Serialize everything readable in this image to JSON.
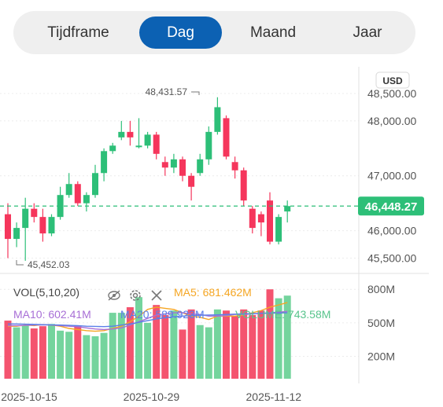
{
  "tabs": [
    {
      "label": "Tijdframe",
      "active": false
    },
    {
      "label": "Dag",
      "active": true
    },
    {
      "label": "Maand",
      "active": false
    },
    {
      "label": "Jaar",
      "active": false
    }
  ],
  "colors": {
    "up": "#2dbf78",
    "down": "#f5365c",
    "vol_up": "#74d49d",
    "vol_down": "#f4546f",
    "accent": "#0c61b3",
    "ma5": "#f5a623",
    "ma10": "#a86fd6",
    "ma20": "#5b7fe8",
    "vol_ma_label": "#58c48c"
  },
  "currency_badge": "USD",
  "current_price_label": "46,448.27",
  "high_label": "48,431.57",
  "low_label": "45,452.03",
  "volume_legend": {
    "title": "VOL(5,10,20)",
    "ma5": "MA5: 681.462M",
    "ma10": "MA10: 602.41M",
    "ma20": "MA20: 589.923M",
    "vol": "VOLUME: 743.58M"
  },
  "legend_icons": [
    "eye-off-icon",
    "gear-icon",
    "close-icon"
  ],
  "chart_data": {
    "type": "candlestick",
    "price_axis": {
      "range": [
        45350,
        48700
      ],
      "ticks": [
        48500,
        48000,
        47000,
        46000,
        45500
      ],
      "tick_labels": [
        "48,500.00",
        "48,000.00",
        "47,000.00",
        "46,000.00",
        "45,500.00"
      ]
    },
    "volume_axis": {
      "unit": "M",
      "range": [
        0,
        900
      ],
      "ticks": [
        800,
        500,
        200
      ],
      "tick_labels": [
        "800M",
        "500M",
        "200M"
      ]
    },
    "x_labels": [
      "2025-10-15",
      "2025-10-29",
      "2025-11-12"
    ],
    "x_label_candle_index": [
      0,
      14,
      28
    ],
    "current_price": 46448.27,
    "candles": [
      {
        "o": 46300,
        "h": 46500,
        "l": 45500,
        "c": 45850,
        "v": 520
      },
      {
        "o": 45850,
        "h": 46150,
        "l": 45700,
        "c": 46050,
        "v": 460
      },
      {
        "o": 46050,
        "h": 46600,
        "l": 45452.03,
        "c": 46400,
        "v": 480
      },
      {
        "o": 46400,
        "h": 46500,
        "l": 46150,
        "c": 46250,
        "v": 450
      },
      {
        "o": 46250,
        "h": 46400,
        "l": 45800,
        "c": 45950,
        "v": 470
      },
      {
        "o": 45950,
        "h": 46300,
        "l": 45900,
        "c": 46250,
        "v": 490
      },
      {
        "o": 46250,
        "h": 46800,
        "l": 46200,
        "c": 46650,
        "v": 430
      },
      {
        "o": 46650,
        "h": 47050,
        "l": 46600,
        "c": 46850,
        "v": 420
      },
      {
        "o": 46850,
        "h": 46900,
        "l": 46450,
        "c": 46500,
        "v": 470
      },
      {
        "o": 46500,
        "h": 46700,
        "l": 46350,
        "c": 46650,
        "v": 390
      },
      {
        "o": 46650,
        "h": 47200,
        "l": 46600,
        "c": 47050,
        "v": 380
      },
      {
        "o": 47050,
        "h": 47500,
        "l": 46900,
        "c": 47450,
        "v": 410
      },
      {
        "o": 47450,
        "h": 47600,
        "l": 47400,
        "c": 47550,
        "v": 590
      },
      {
        "o": 47700,
        "h": 48000,
        "l": 47650,
        "c": 47800,
        "v": 590
      },
      {
        "o": 47800,
        "h": 48000,
        "l": 47550,
        "c": 47700,
        "v": 640
      },
      {
        "o": 47550,
        "h": 48050,
        "l": 47500,
        "c": 47550,
        "v": 730
      },
      {
        "o": 47550,
        "h": 47800,
        "l": 47500,
        "c": 47750,
        "v": 500
      },
      {
        "o": 47750,
        "h": 47800,
        "l": 47300,
        "c": 47400,
        "v": 660
      },
      {
        "o": 47250,
        "h": 47350,
        "l": 47000,
        "c": 47150,
        "v": 570
      },
      {
        "o": 47150,
        "h": 47400,
        "l": 47050,
        "c": 47300,
        "v": 610
      },
      {
        "o": 47300,
        "h": 47350,
        "l": 46900,
        "c": 47000,
        "v": 440
      },
      {
        "o": 47000,
        "h": 47050,
        "l": 46550,
        "c": 46800,
        "v": 620
      },
      {
        "o": 47050,
        "h": 47400,
        "l": 47000,
        "c": 47300,
        "v": 480
      },
      {
        "o": 47300,
        "h": 47900,
        "l": 47200,
        "c": 47800,
        "v": 460
      },
      {
        "o": 47800,
        "h": 48431.57,
        "l": 47750,
        "c": 48250,
        "v": 620
      },
      {
        "o": 48050,
        "h": 48100,
        "l": 47300,
        "c": 47350,
        "v": 610
      },
      {
        "o": 47250,
        "h": 47350,
        "l": 46950,
        "c": 47100,
        "v": 560
      },
      {
        "o": 47100,
        "h": 47150,
        "l": 46450,
        "c": 46550,
        "v": 620
      },
      {
        "o": 46400,
        "h": 46450,
        "l": 45950,
        "c": 46050,
        "v": 570
      },
      {
        "o": 46300,
        "h": 46350,
        "l": 45900,
        "c": 46150,
        "v": 610
      },
      {
        "o": 46550,
        "h": 46700,
        "l": 45750,
        "c": 45800,
        "v": 800
      },
      {
        "o": 45800,
        "h": 46300,
        "l": 45750,
        "c": 46250,
        "v": 720
      },
      {
        "o": 46350,
        "h": 46550,
        "l": 46150,
        "c": 46448.27,
        "v": 743.58
      }
    ],
    "ma_lines": [
      {
        "name": "MA5",
        "values": [
          470,
          470,
          480,
          475,
          485,
          480,
          470,
          450,
          440,
          430,
          425,
          430,
          450,
          470,
          510,
          560,
          620,
          640,
          630,
          620,
          590,
          560,
          550,
          530,
          560,
          560,
          560,
          570,
          590,
          610,
          640,
          660,
          681.462
        ]
      },
      {
        "name": "MA10",
        "values": [
          475,
          475,
          478,
          480,
          482,
          480,
          475,
          470,
          465,
          455,
          445,
          440,
          445,
          455,
          480,
          510,
          540,
          570,
          580,
          590,
          590,
          580,
          575,
          560,
          560,
          565,
          575,
          575,
          580,
          585,
          590,
          595,
          602.41
        ]
      },
      {
        "name": "MA20",
        "values": [
          490,
          490,
          488,
          486,
          484,
          482,
          480,
          478,
          475,
          470,
          468,
          466,
          470,
          480,
          490,
          505,
          520,
          535,
          545,
          555,
          560,
          565,
          568,
          570,
          572,
          575,
          578,
          580,
          582,
          585,
          587,
          588,
          589.923
        ]
      }
    ]
  }
}
